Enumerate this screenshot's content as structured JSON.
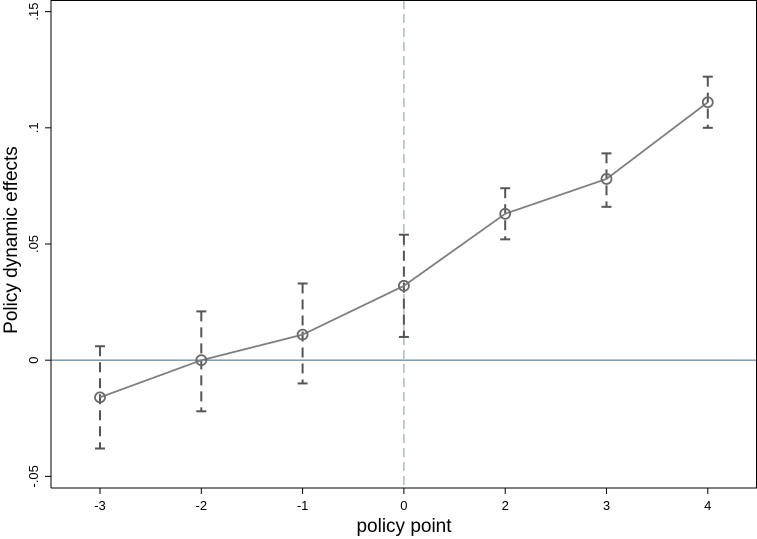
{
  "chart_data": {
    "type": "line",
    "title": "",
    "xlabel": "policy point",
    "ylabel": "Policy dynamic effects",
    "x_categories": [
      "-3",
      "-2",
      "-1",
      "0",
      "2",
      "3",
      "4"
    ],
    "y_ticks": [
      -0.05,
      0,
      0.05,
      0.1,
      0.15
    ],
    "y_tick_labels": [
      "-.05",
      "0",
      ".05",
      ".1",
      ".15"
    ],
    "ylim": [
      -0.055,
      0.155
    ],
    "series": [
      {
        "estimates": [
          -0.016,
          0.0,
          0.011,
          0.032,
          0.063,
          0.078,
          0.111
        ],
        "ci_lower": [
          -0.038,
          -0.022,
          -0.01,
          0.01,
          0.052,
          0.066,
          0.1
        ],
        "ci_upper": [
          0.006,
          0.021,
          0.033,
          0.054,
          0.074,
          0.089,
          0.122
        ]
      }
    ],
    "reference_lines": {
      "horizontal_y": 0,
      "vertical_x": "0"
    },
    "grid": false,
    "legend": "none",
    "colors": {
      "line": "#7f7f7f",
      "markers": "#6a6a6a",
      "error_bars": "#555555",
      "zero_line": "#6f8fa8",
      "vertical_line": "#8fb0a8",
      "axes": "#000000"
    }
  }
}
